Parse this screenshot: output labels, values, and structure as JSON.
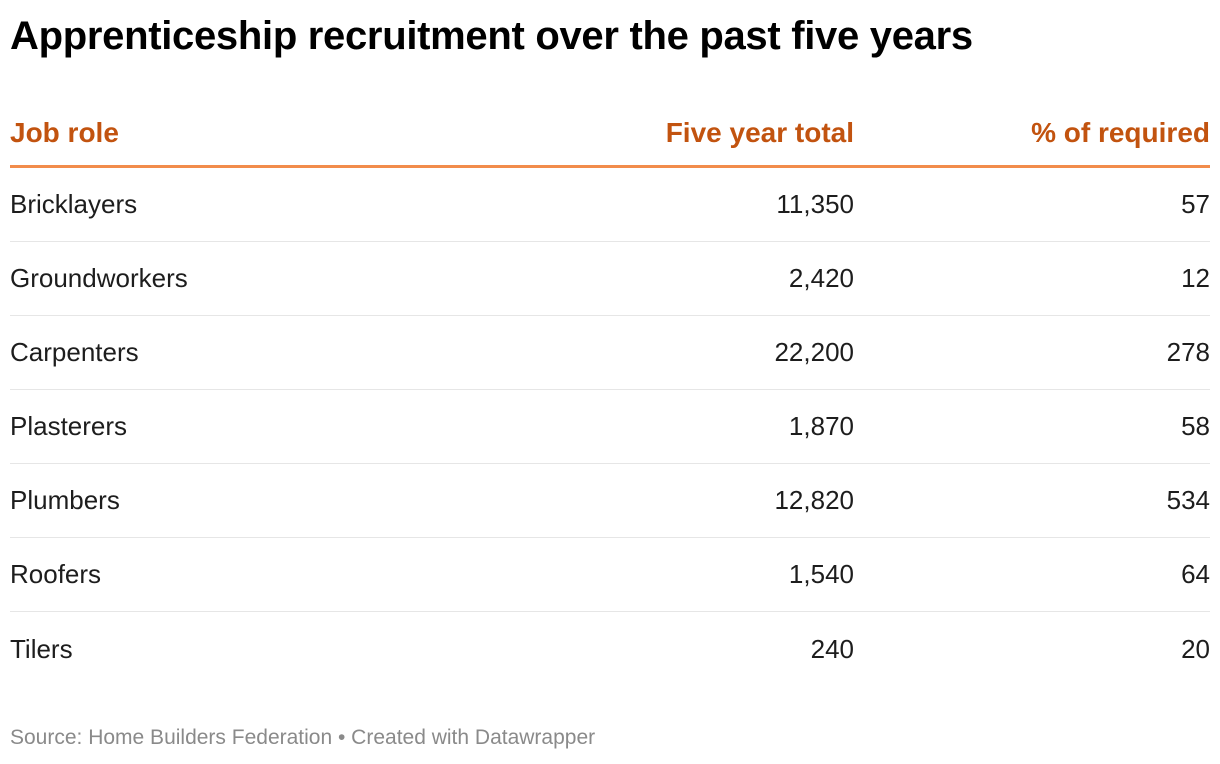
{
  "title": "Apprenticeship recruitment over the past five years",
  "header": {
    "role": "Job role",
    "total": "Five year total",
    "pct": "% of required"
  },
  "chart_data": {
    "type": "table",
    "title": "Apprenticeship recruitment over the past five years",
    "columns": [
      "Job role",
      "Five year total",
      "% of required"
    ],
    "rows": [
      {
        "role": "Bricklayers",
        "total": "11,350",
        "pct": "57"
      },
      {
        "role": "Groundworkers",
        "total": "2,420",
        "pct": "12"
      },
      {
        "role": "Carpenters",
        "total": "22,200",
        "pct": "278"
      },
      {
        "role": "Plasterers",
        "total": "1,870",
        "pct": "58"
      },
      {
        "role": "Plumbers",
        "total": "12,820",
        "pct": "534"
      },
      {
        "role": "Roofers",
        "total": "1,540",
        "pct": "64"
      },
      {
        "role": "Tilers",
        "total": "240",
        "pct": "20"
      }
    ]
  },
  "colors": {
    "header_text": "#c2530f",
    "header_rule": "#f28c4b",
    "row_divider": "#e6e6e6",
    "footer_text": "#8a8a8a"
  },
  "footer": {
    "text": "Source: Home Builders Federation • Created with Datawrapper"
  }
}
